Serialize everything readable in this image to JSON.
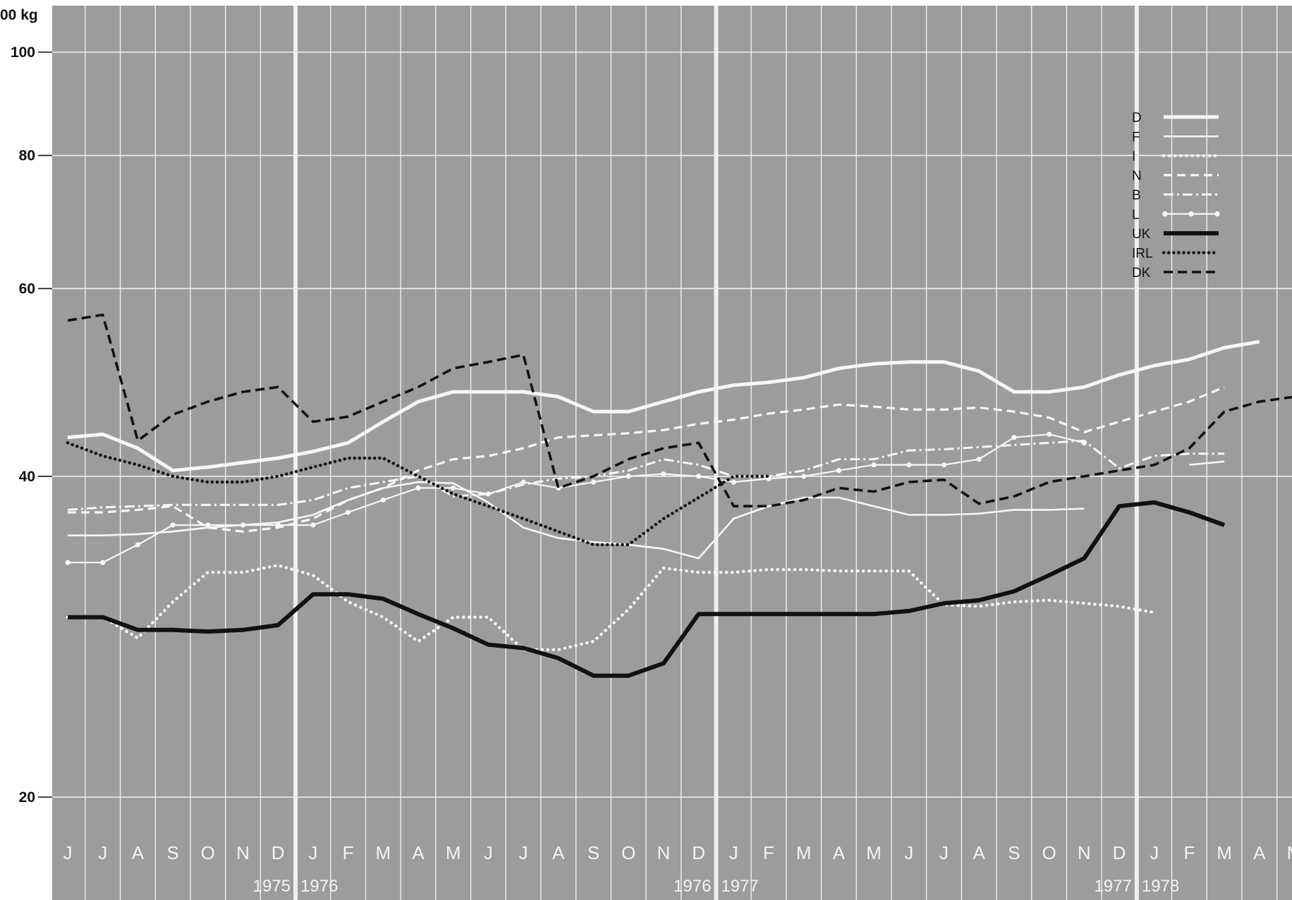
{
  "chart_data": {
    "type": "line",
    "unit_label": "00 kg",
    "yscale": "log",
    "ylim": [
      17,
      108
    ],
    "yticks": [
      20,
      40,
      60,
      80,
      100
    ],
    "month_labels": [
      "J",
      "J",
      "A",
      "S",
      "O",
      "N",
      "D",
      "J",
      "F",
      "M",
      "A",
      "M",
      "J",
      "J",
      "A",
      "S",
      "O",
      "N",
      "D",
      "J",
      "F",
      "M",
      "A",
      "M",
      "J",
      "J",
      "A",
      "S",
      "O",
      "N",
      "D",
      "J",
      "F",
      "M",
      "A",
      "M"
    ],
    "year_labels": [
      "1975",
      "1976",
      "1976",
      "1977",
      "1977",
      "1978"
    ],
    "grid": true,
    "legend_position": "top-right",
    "background_color": "#9c9c9c",
    "series": [
      {
        "name": "D",
        "style": "thick",
        "values": [
          43.5,
          43.8,
          42.5,
          40.5,
          40.8,
          41.2,
          41.6,
          42.2,
          43,
          45,
          47,
          48,
          48,
          48,
          47.5,
          46,
          46,
          47,
          48,
          48.7,
          49,
          49.5,
          50.5,
          51,
          51.2,
          51.2,
          50.2,
          48,
          48,
          48.5,
          49.8,
          50.8,
          51.5,
          52.8,
          53.5,
          null
        ]
      },
      {
        "name": "F",
        "style": "thin",
        "values": [
          35.2,
          35.2,
          35.3,
          35.5,
          35.8,
          36,
          36.2,
          36.8,
          38,
          39,
          39.5,
          39.4,
          37.8,
          35.8,
          35,
          34.7,
          34.5,
          34.2,
          33.5,
          36.5,
          37.5,
          38.2,
          38.2,
          37.5,
          36.8,
          36.8,
          36.9,
          37.2,
          37.2,
          37.3,
          null,
          null,
          41,
          41.3,
          null,
          null
        ]
      },
      {
        "name": "I",
        "style": "dotted",
        "values": [
          29.5,
          29.5,
          28.2,
          30.5,
          32.5,
          32.5,
          33,
          32.3,
          30.5,
          29.5,
          28,
          29.5,
          29.5,
          27.5,
          27.5,
          28,
          30,
          32.8,
          32.5,
          32.5,
          32.7,
          32.7,
          32.6,
          32.6,
          32.6,
          30.3,
          30.2,
          30.5,
          30.6,
          30.4,
          30.2,
          29.8,
          null,
          null,
          null,
          null
        ]
      },
      {
        "name": "N",
        "style": "dashed",
        "values": [
          37,
          37,
          37.2,
          37.5,
          35.8,
          35.5,
          35.8,
          36.5,
          38,
          39,
          40.5,
          41.5,
          41.8,
          42.5,
          43.5,
          43.7,
          43.9,
          44.2,
          44.8,
          45.2,
          45.8,
          46.2,
          46.7,
          46.5,
          46.2,
          46.2,
          46.4,
          46,
          45.4,
          44,
          45,
          46,
          47,
          48.5,
          null,
          null
        ]
      },
      {
        "name": "B",
        "style": "dash-dot",
        "values": [
          37.2,
          37.4,
          37.5,
          37.6,
          37.6,
          37.6,
          37.6,
          38,
          39,
          39.5,
          40,
          38.3,
          38.5,
          39.3,
          39.8,
          40,
          40.5,
          41.5,
          41,
          40,
          40,
          40.5,
          41.5,
          41.5,
          42.3,
          42.4,
          42.6,
          42.8,
          43,
          43.2,
          40.7,
          41.8,
          42,
          42,
          null,
          null
        ]
      },
      {
        "name": "L",
        "style": "dotted-line",
        "values": [
          33.2,
          33.2,
          34.5,
          36,
          36,
          36,
          36,
          36,
          37,
          38,
          39,
          39,
          38.5,
          39.5,
          39,
          39.5,
          40,
          40.2,
          40,
          39.5,
          39.8,
          40,
          40.5,
          41,
          41,
          41,
          41.5,
          43.5,
          43.8,
          43,
          null,
          null,
          null,
          null,
          null,
          null
        ]
      },
      {
        "name": "UK",
        "style": "heavy",
        "values": [
          29.5,
          29.5,
          28.7,
          28.7,
          28.6,
          28.7,
          29,
          31,
          31,
          30.7,
          29.7,
          28.8,
          27.8,
          27.6,
          27,
          26,
          26,
          26.7,
          29.7,
          29.7,
          29.7,
          29.7,
          29.7,
          29.7,
          29.9,
          30.4,
          30.6,
          31.2,
          32.3,
          33.5,
          37.5,
          37.8,
          37,
          36,
          null,
          null
        ]
      },
      {
        "name": "IRL",
        "style": "heavy-dotted",
        "values": [
          43,
          41.8,
          41,
          40,
          39.5,
          39.5,
          40,
          40.8,
          41.6,
          41.6,
          40,
          38.5,
          37.5,
          36.5,
          35.5,
          34.5,
          34.5,
          36.5,
          38.2,
          40,
          40,
          null,
          null,
          null,
          null,
          null,
          null,
          null,
          null,
          null,
          null,
          null,
          null,
          null,
          null,
          null
        ]
      },
      {
        "name": "DK",
        "style": "heavy-dashed",
        "values": [
          56,
          56.7,
          43.2,
          45.7,
          47,
          48,
          48.5,
          45,
          45.5,
          47,
          48.5,
          50.5,
          51.2,
          52,
          39,
          40,
          41.5,
          42.5,
          43,
          37.5,
          37.5,
          38,
          39,
          38.7,
          39.5,
          39.7,
          37.7,
          38.3,
          39.5,
          40,
          40.5,
          41,
          42.5,
          46,
          47,
          47.5
        ]
      }
    ]
  }
}
